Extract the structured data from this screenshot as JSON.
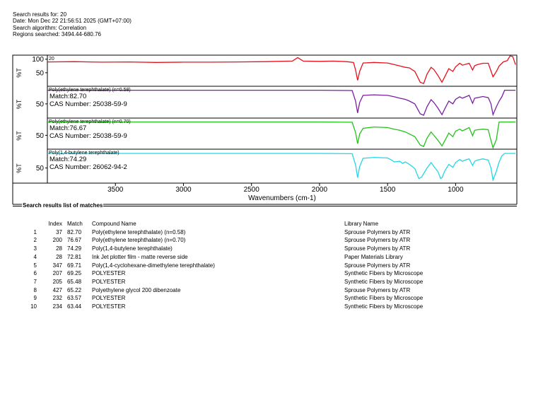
{
  "header": {
    "line1": "Search results for:  20",
    "line2": "Date:  Mon Dec 22 21:56:51 2025 (GMT+07:00)",
    "line3": "Search algorithm:  Correlation",
    "line4": "Regions searched:  3494.44-680.76"
  },
  "chart_data": {
    "type": "line",
    "xlabel": "Wavenumbers (cm-1)",
    "ylabel": "%T",
    "x_ticks": [
      "3500",
      "3000",
      "2500",
      "2000",
      "1500",
      "1000"
    ],
    "xlim": [
      4000,
      550
    ],
    "panels": [
      {
        "title": "20",
        "color": "#e8101a",
        "y_ticks": [
          "100",
          "50"
        ],
        "ylim": [
          0,
          115
        ],
        "points": [
          [
            4000,
            90
          ],
          [
            3800,
            91
          ],
          [
            3600,
            89
          ],
          [
            3400,
            90
          ],
          [
            3200,
            88
          ],
          [
            3000,
            89
          ],
          [
            2800,
            89
          ],
          [
            2600,
            90
          ],
          [
            2400,
            91
          ],
          [
            2200,
            93
          ],
          [
            2160,
            106
          ],
          [
            2120,
            93
          ],
          [
            2000,
            92
          ],
          [
            1900,
            93
          ],
          [
            1800,
            91
          ],
          [
            1750,
            88
          ],
          [
            1735,
            60
          ],
          [
            1720,
            22
          ],
          [
            1705,
            55
          ],
          [
            1680,
            86
          ],
          [
            1600,
            88
          ],
          [
            1500,
            86
          ],
          [
            1450,
            80
          ],
          [
            1410,
            75
          ],
          [
            1370,
            70
          ],
          [
            1340,
            68
          ],
          [
            1300,
            55
          ],
          [
            1260,
            15
          ],
          [
            1235,
            10
          ],
          [
            1210,
            45
          ],
          [
            1180,
            70
          ],
          [
            1160,
            62
          ],
          [
            1130,
            40
          ],
          [
            1100,
            15
          ],
          [
            1080,
            35
          ],
          [
            1050,
            65
          ],
          [
            1020,
            55
          ],
          [
            1000,
            72
          ],
          [
            970,
            85
          ],
          [
            950,
            78
          ],
          [
            900,
            85
          ],
          [
            875,
            60
          ],
          [
            860,
            76
          ],
          [
            840,
            80
          ],
          [
            800,
            85
          ],
          [
            760,
            85
          ],
          [
            725,
            35
          ],
          [
            700,
            55
          ],
          [
            680,
            75
          ],
          [
            650,
            90
          ],
          [
            620,
            95
          ],
          [
            600,
            112
          ],
          [
            580,
            110
          ],
          [
            560,
            80
          ]
        ]
      },
      {
        "title": "Poly(ethylene terephthalate) (n=0.58)",
        "match_label": "Match:82.70",
        "cas_label": "CAS Number:  25038-59-9",
        "color": "#7a1fa2",
        "y_ticks": [
          "50"
        ],
        "ylim": [
          0,
          112
        ],
        "points": [
          [
            4000,
            98
          ],
          [
            3600,
            98
          ],
          [
            3200,
            98
          ],
          [
            2800,
            98
          ],
          [
            2400,
            98
          ],
          [
            2000,
            98
          ],
          [
            1760,
            97
          ],
          [
            1735,
            60
          ],
          [
            1720,
            18
          ],
          [
            1705,
            55
          ],
          [
            1680,
            80
          ],
          [
            1600,
            82
          ],
          [
            1500,
            80
          ],
          [
            1450,
            75
          ],
          [
            1410,
            70
          ],
          [
            1370,
            66
          ],
          [
            1340,
            60
          ],
          [
            1300,
            50
          ],
          [
            1260,
            15
          ],
          [
            1235,
            10
          ],
          [
            1210,
            40
          ],
          [
            1180,
            65
          ],
          [
            1160,
            55
          ],
          [
            1130,
            35
          ],
          [
            1100,
            12
          ],
          [
            1080,
            32
          ],
          [
            1050,
            60
          ],
          [
            1020,
            50
          ],
          [
            1000,
            66
          ],
          [
            970,
            75
          ],
          [
            950,
            70
          ],
          [
            900,
            80
          ],
          [
            875,
            52
          ],
          [
            860,
            70
          ],
          [
            840,
            72
          ],
          [
            800,
            76
          ],
          [
            760,
            72
          ],
          [
            740,
            50
          ],
          [
            725,
            12
          ],
          [
            700,
            40
          ],
          [
            680,
            60
          ],
          [
            660,
            75
          ],
          [
            640,
            98
          ],
          [
            560,
            98
          ]
        ]
      },
      {
        "title": "Poly(ethylene terephthalate) (n=0.70)",
        "match_label": "Match:76.67",
        "cas_label": "CAS Number:  25038-59-9",
        "color": "#22c31a",
        "y_ticks": [
          "50"
        ],
        "ylim": [
          0,
          112
        ],
        "points": [
          [
            4000,
            98
          ],
          [
            3600,
            98
          ],
          [
            3200,
            98
          ],
          [
            2800,
            98
          ],
          [
            2400,
            98
          ],
          [
            2000,
            98
          ],
          [
            1760,
            97
          ],
          [
            1735,
            60
          ],
          [
            1720,
            20
          ],
          [
            1705,
            55
          ],
          [
            1680,
            75
          ],
          [
            1600,
            80
          ],
          [
            1500,
            78
          ],
          [
            1450,
            72
          ],
          [
            1410,
            68
          ],
          [
            1370,
            62
          ],
          [
            1340,
            55
          ],
          [
            1300,
            45
          ],
          [
            1260,
            15
          ],
          [
            1235,
            10
          ],
          [
            1210,
            40
          ],
          [
            1180,
            62
          ],
          [
            1160,
            50
          ],
          [
            1130,
            32
          ],
          [
            1100,
            12
          ],
          [
            1080,
            30
          ],
          [
            1050,
            58
          ],
          [
            1020,
            45
          ],
          [
            1000,
            65
          ],
          [
            970,
            72
          ],
          [
            950,
            66
          ],
          [
            900,
            78
          ],
          [
            875,
            48
          ],
          [
            860,
            68
          ],
          [
            840,
            70
          ],
          [
            800,
            72
          ],
          [
            760,
            70
          ],
          [
            745,
            40
          ],
          [
            725,
            5
          ],
          [
            700,
            35
          ],
          [
            690,
            70
          ],
          [
            680,
            98
          ],
          [
            560,
            98
          ]
        ]
      },
      {
        "title": "Poly(1,4-butylene terephthalate)",
        "match_label": "Match:74.29",
        "cas_label": "CAS Number:  26062-94-2",
        "color": "#22d6e6",
        "y_ticks": [
          "50"
        ],
        "ylim": [
          0,
          112
        ],
        "points": [
          [
            4000,
            98
          ],
          [
            3600,
            98
          ],
          [
            3200,
            98
          ],
          [
            2800,
            98
          ],
          [
            2400,
            98
          ],
          [
            2000,
            98
          ],
          [
            1760,
            97
          ],
          [
            1735,
            60
          ],
          [
            1720,
            18
          ],
          [
            1705,
            55
          ],
          [
            1680,
            82
          ],
          [
            1600,
            85
          ],
          [
            1500,
            83
          ],
          [
            1470,
            76
          ],
          [
            1450,
            70
          ],
          [
            1410,
            72
          ],
          [
            1390,
            65
          ],
          [
            1370,
            70
          ],
          [
            1340,
            62
          ],
          [
            1300,
            48
          ],
          [
            1270,
            15
          ],
          [
            1250,
            20
          ],
          [
            1230,
            35
          ],
          [
            1210,
            50
          ],
          [
            1180,
            68
          ],
          [
            1160,
            55
          ],
          [
            1130,
            38
          ],
          [
            1110,
            15
          ],
          [
            1100,
            18
          ],
          [
            1080,
            40
          ],
          [
            1050,
            62
          ],
          [
            1020,
            52
          ],
          [
            1000,
            68
          ],
          [
            970,
            78
          ],
          [
            950,
            72
          ],
          [
            920,
            78
          ],
          [
            900,
            80
          ],
          [
            875,
            58
          ],
          [
            860,
            72
          ],
          [
            840,
            76
          ],
          [
            800,
            80
          ],
          [
            760,
            76
          ],
          [
            740,
            50
          ],
          [
            725,
            10
          ],
          [
            700,
            40
          ],
          [
            680,
            70
          ],
          [
            660,
            90
          ],
          [
            640,
            98
          ],
          [
            560,
            98
          ]
        ]
      }
    ]
  },
  "results": {
    "box_title": "Search results list of matches",
    "headers": {
      "index": "Index",
      "match": "Match",
      "name": "Compound Name",
      "library": "Library Name"
    },
    "rows": [
      {
        "num": "1",
        "index": "37",
        "match": "82.70",
        "name": "Poly(ethylene terephthalate) (n=0.58)",
        "library": "Sprouse Polymers by ATR"
      },
      {
        "num": "2",
        "index": "200",
        "match": "76.67",
        "name": "Poly(ethylene terephthalate) (n=0.70)",
        "library": "Sprouse Polymers by ATR"
      },
      {
        "num": "3",
        "index": "28",
        "match": "74.29",
        "name": "Poly(1,4-butylene terephthalate)",
        "library": "Sprouse Polymers by ATR"
      },
      {
        "num": "4",
        "index": "28",
        "match": "72.81",
        "name": "Ink Jet plotter film - matte reverse side",
        "library": "Paper Materials Library"
      },
      {
        "num": "5",
        "index": "347",
        "match": "69.71",
        "name": "Poly(1,4-cyclohexane-dimethylene terephthalate)",
        "library": "Sprouse Polymers by ATR"
      },
      {
        "num": "6",
        "index": "207",
        "match": "69.25",
        "name": "POLYESTER",
        "library": "Synthetic Fibers by Microscope"
      },
      {
        "num": "7",
        "index": "205",
        "match": "65.48",
        "name": "POLYESTER",
        "library": "Synthetic Fibers by Microscope"
      },
      {
        "num": "8",
        "index": "427",
        "match": "65.22",
        "name": "Polyethylene glycol 200 dibenzoate",
        "library": "Sprouse Polymers by ATR"
      },
      {
        "num": "9",
        "index": "232",
        "match": "63.57",
        "name": "POLYESTER",
        "library": "Synthetic Fibers by Microscope"
      },
      {
        "num": "10",
        "index": "234",
        "match": "63.44",
        "name": "POLYESTER",
        "library": "Synthetic Fibers by Microscope"
      }
    ]
  }
}
